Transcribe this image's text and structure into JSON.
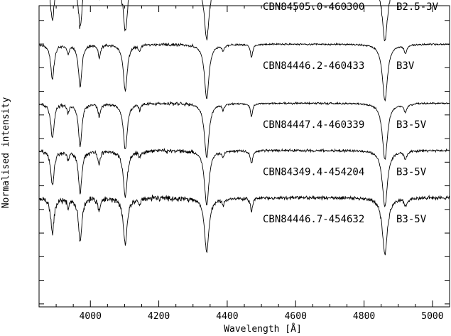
{
  "chart_data": {
    "type": "line",
    "xlabel": "Wavelength [Å]",
    "ylabel": "Normalised intensity",
    "xlim": [
      3850,
      5050
    ],
    "ylim": [
      0,
      5.1
    ],
    "x_ticks": [
      4000,
      4200,
      4400,
      4600,
      4800,
      5000
    ],
    "x_tick_labels": [
      "4000",
      "4200",
      "4400",
      "4600",
      "4800",
      "5000"
    ],
    "y_tick_values": [
      0.05,
      0.45,
      0.85,
      1.25,
      1.65,
      2.05,
      2.45,
      2.85,
      3.25,
      3.65,
      4.05,
      4.45,
      4.85
    ],
    "grid": false,
    "absorption_lines": [
      {
        "wavelength": 3889,
        "depth": 0.58,
        "width": 6
      },
      {
        "wavelength": 3970,
        "depth": 0.72,
        "width": 6
      },
      {
        "wavelength": 4102,
        "depth": 0.78,
        "width": 7
      },
      {
        "wavelength": 4340,
        "depth": 0.92,
        "width": 8
      },
      {
        "wavelength": 4861,
        "depth": 0.95,
        "width": 9
      },
      {
        "wavelength": 3935,
        "depth": 0.14,
        "width": 4
      },
      {
        "wavelength": 4026,
        "depth": 0.22,
        "width": 4
      },
      {
        "wavelength": 4144,
        "depth": 0.1,
        "width": 4
      },
      {
        "wavelength": 4388,
        "depth": 0.1,
        "width": 4
      },
      {
        "wavelength": 4471,
        "depth": 0.22,
        "width": 4
      },
      {
        "wavelength": 4921,
        "depth": 0.14,
        "width": 5
      }
    ],
    "series": [
      {
        "name": "CBN84505.0-460300",
        "label": "CBN84505.0-460300",
        "spectral_type": "B2.5-3V",
        "offset": 4.45,
        "noise": 0.05
      },
      {
        "name": "CBN84446.2-460433",
        "label": "CBN84446.2-460433",
        "spectral_type": "B3V",
        "offset": 3.45,
        "noise": 0.022
      },
      {
        "name": "CBN84447.4-460339",
        "label": "CBN84447.4-460339",
        "spectral_type": "B3-5V",
        "offset": 2.45,
        "noise": 0.025
      },
      {
        "name": "CBN84349.4-454204",
        "label": "CBN84349.4-454204",
        "spectral_type": "B3-5V",
        "offset": 1.65,
        "noise": 0.035
      },
      {
        "name": "CBN84446.7-454632",
        "label": "CBN84446.7-454632",
        "spectral_type": "B3-5V",
        "offset": 0.85,
        "noise": 0.05
      }
    ]
  }
}
